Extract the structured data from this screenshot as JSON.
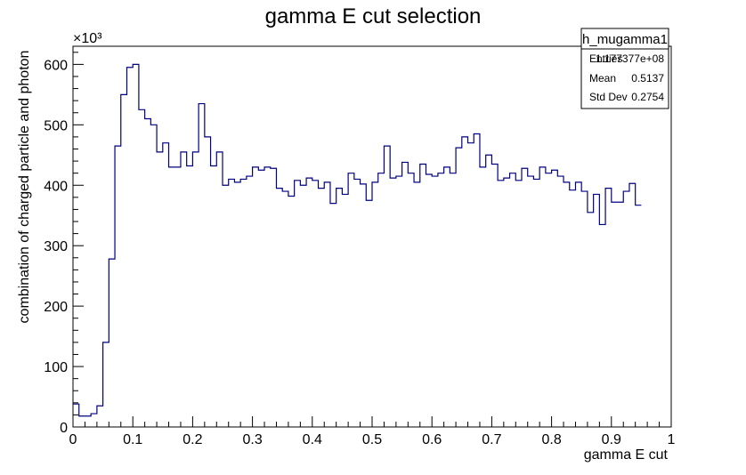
{
  "chart_data": {
    "type": "histogram",
    "title": "gamma E cut selection",
    "xlabel": "gamma E cut",
    "ylabel": "combination of charged particle and photon",
    "y_exponent_label": "×10³",
    "xlim": [
      0,
      1
    ],
    "ylim": [
      0,
      630
    ],
    "x_ticks": [
      0,
      0.1,
      0.2,
      0.3,
      0.4,
      0.5,
      0.6,
      0.7,
      0.8,
      0.9,
      1
    ],
    "x_tick_labels": [
      "0",
      "0.1",
      "0.2",
      "0.3",
      "0.4",
      "0.5",
      "0.6",
      "0.7",
      "0.8",
      "0.9",
      "1"
    ],
    "y_ticks": [
      0,
      100,
      200,
      300,
      400,
      500,
      600
    ],
    "y_tick_labels": [
      "0",
      "100",
      "200",
      "300",
      "400",
      "500",
      "600"
    ],
    "line_color": "#000080",
    "bin_width": 0.01,
    "values": [
      38,
      18,
      18,
      22,
      35,
      140,
      278,
      465,
      550,
      595,
      600,
      525,
      510,
      500,
      455,
      470,
      430,
      430,
      455,
      432,
      455,
      535,
      480,
      432,
      455,
      400,
      410,
      405,
      410,
      415,
      430,
      425,
      430,
      428,
      395,
      390,
      382,
      408,
      400,
      412,
      408,
      395,
      405,
      370,
      395,
      385,
      420,
      410,
      402,
      375,
      405,
      420,
      465,
      412,
      415,
      438,
      420,
      405,
      435,
      418,
      415,
      420,
      430,
      420,
      462,
      480,
      470,
      485,
      430,
      450,
      435,
      408,
      412,
      420,
      408,
      428,
      415,
      410,
      430,
      420,
      425,
      415,
      405,
      392,
      405,
      390,
      355,
      385,
      335,
      395,
      372,
      372,
      390,
      403,
      367
    ],
    "stats": {
      "name": "h_mugamma1",
      "rows": [
        {
          "label": "Entries",
          "value": "1.177377e+08"
        },
        {
          "label": "Mean",
          "value": "0.5137"
        },
        {
          "label": "Std Dev",
          "value": "0.2754"
        }
      ]
    }
  }
}
